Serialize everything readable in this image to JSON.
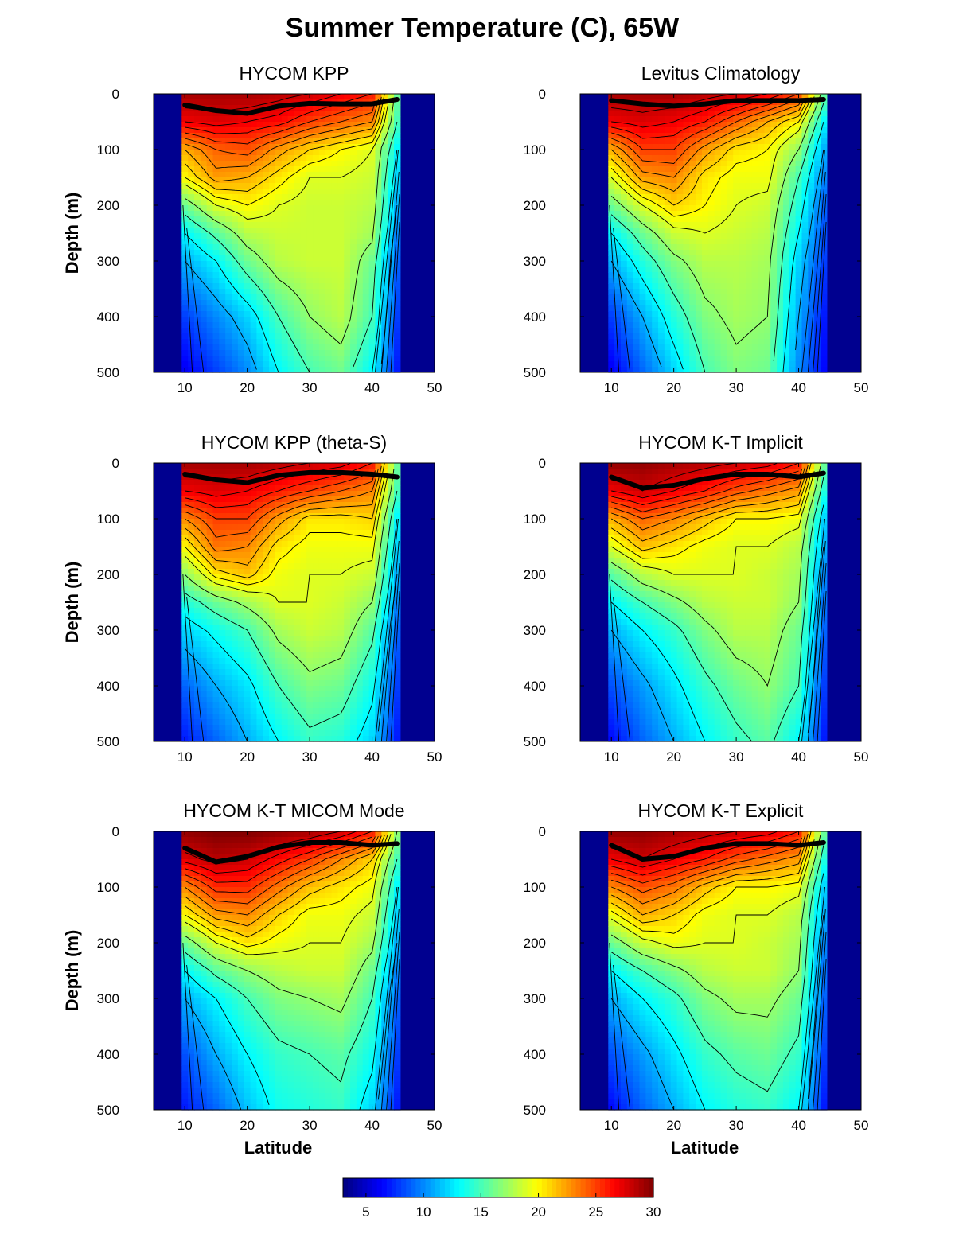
{
  "figure": {
    "title": "Summer Temperature (C), 65W"
  },
  "chart_data": {
    "type": "heatmap",
    "title": "Summer Temperature (C), 65W",
    "xlabel": "Latitude",
    "ylabel": "Depth (m)",
    "xlim": [
      5,
      50
    ],
    "ylim": [
      500,
      0
    ],
    "xticks": [
      10,
      20,
      30,
      40,
      50
    ],
    "yticks": [
      0,
      100,
      200,
      300,
      400,
      500
    ],
    "land_lat_ranges": [
      [
        5,
        9.5
      ],
      [
        44.5,
        50
      ]
    ],
    "colorbar": {
      "range": [
        3,
        30
      ],
      "ticks": [
        5,
        10,
        15,
        20,
        25,
        30
      ],
      "colormap": "jet"
    },
    "panels": [
      {
        "title": "HYCOM KPP",
        "show_xlabel": false,
        "show_ylabel": true,
        "mixed_layer_depth": {
          "lat": [
            10,
            15,
            20,
            25,
            30,
            35,
            40,
            44
          ],
          "depth": [
            20,
            30,
            35,
            22,
            17,
            18,
            18,
            10
          ]
        },
        "temperature": {
          "lat": [
            10,
            15,
            20,
            25,
            30,
            35,
            40,
            44
          ],
          "depth": [
            0,
            50,
            100,
            150,
            200,
            250,
            300,
            400,
            500
          ],
          "values": [
            [
              29,
              29,
              29,
              28.5,
              28,
              27,
              26,
              16
            ],
            [
              27,
              27.5,
              27,
              26.5,
              25,
              24,
              23,
              15
            ],
            [
              22,
              24,
              24.5,
              22.5,
              21,
              20,
              19,
              13
            ],
            [
              20,
              22.5,
              22,
              20.5,
              19,
              19,
              18.5,
              12
            ],
            [
              16,
              19,
              20,
              19,
              18.5,
              18.5,
              18,
              11
            ],
            [
              13,
              15.5,
              18,
              18.5,
              18.5,
              18.5,
              17.5,
              10
            ],
            [
              11,
              13,
              16,
              18,
              18.5,
              18.5,
              16,
              9
            ],
            [
              8,
              10,
              12,
              15,
              17,
              18,
              15,
              8
            ],
            [
              6,
              8,
              10,
              13,
              15,
              16,
              13,
              7
            ]
          ]
        }
      },
      {
        "title": "Levitus Climatology",
        "show_xlabel": false,
        "show_ylabel": false,
        "mixed_layer_depth": {
          "lat": [
            10,
            15,
            20,
            25,
            30,
            35,
            40,
            44
          ],
          "depth": [
            12,
            18,
            22,
            18,
            12,
            12,
            12,
            10
          ]
        },
        "temperature": {
          "lat": [
            10,
            15,
            20,
            25,
            30,
            35,
            40,
            44
          ],
          "depth": [
            0,
            50,
            100,
            150,
            200,
            250,
            300,
            400,
            500
          ],
          "values": [
            [
              29,
              29,
              29,
              28.5,
              28,
              27,
              25,
              16
            ],
            [
              27,
              27.5,
              27,
              26,
              24,
              22,
              20,
              13
            ],
            [
              22,
              25,
              25,
              22.5,
              20.5,
              20,
              17,
              11
            ],
            [
              19,
              22.5,
              23,
              20.5,
              19.5,
              19.5,
              15,
              10
            ],
            [
              16,
              19,
              21,
              20,
              19,
              18.5,
              14,
              9
            ],
            [
              13,
              16,
              18.5,
              19,
              18.5,
              18,
              13,
              8.5
            ],
            [
              11,
              14,
              16.5,
              18,
              18,
              17.5,
              12,
              8
            ],
            [
              8,
              11,
              14,
              16.5,
              17.5,
              17,
              11,
              7
            ],
            [
              6,
              9,
              12,
              15,
              16.5,
              16,
              10,
              6.5
            ]
          ]
        }
      },
      {
        "title": "HYCOM KPP (theta-S)",
        "show_xlabel": false,
        "show_ylabel": true,
        "mixed_layer_depth": {
          "lat": [
            10,
            15,
            20,
            25,
            30,
            35,
            40,
            44
          ],
          "depth": [
            20,
            30,
            35,
            22,
            17,
            17,
            20,
            25
          ]
        },
        "temperature": {
          "lat": [
            10,
            15,
            20,
            25,
            30,
            35,
            40,
            44
          ],
          "depth": [
            0,
            50,
            100,
            150,
            200,
            250,
            300,
            400,
            500
          ],
          "values": [
            [
              29,
              29,
              29,
              28.5,
              28,
              27.5,
              26,
              16
            ],
            [
              27,
              27.5,
              27,
              26,
              25,
              24,
              23,
              15
            ],
            [
              23,
              25,
              25,
              22.5,
              20.5,
              20.5,
              21,
              13
            ],
            [
              20,
              23.5,
              23,
              20.5,
              19.5,
              19.5,
              19.5,
              12
            ],
            [
              17,
              20.5,
              21.5,
              19.5,
              19,
              19,
              18.5,
              11
            ],
            [
              14,
              16,
              17.5,
              19,
              19,
              18.5,
              17,
              10
            ],
            [
              12,
              13.5,
              15,
              17.5,
              18.5,
              18,
              15.5,
              9
            ],
            [
              9,
              11,
              12.5,
              15,
              16.5,
              16,
              13.5,
              8
            ],
            [
              7,
              9,
              11,
              13,
              14.5,
              14,
              12,
              7
            ]
          ]
        }
      },
      {
        "title": "HYCOM K-T Implicit",
        "show_xlabel": false,
        "show_ylabel": false,
        "mixed_layer_depth": {
          "lat": [
            10,
            15,
            20,
            25,
            30,
            35,
            40,
            44
          ],
          "depth": [
            25,
            45,
            40,
            28,
            20,
            20,
            25,
            18
          ]
        },
        "temperature": {
          "lat": [
            10,
            15,
            20,
            25,
            30,
            35,
            40,
            44
          ],
          "depth": [
            0,
            50,
            100,
            150,
            200,
            250,
            300,
            400,
            500
          ],
          "values": [
            [
              29.5,
              29.5,
              29,
              28.5,
              28,
              27.5,
              26,
              16
            ],
            [
              27,
              28,
              27,
              26,
              24.5,
              23.5,
              22.5,
              14
            ],
            [
              22,
              24,
              23,
              21.5,
              20,
              20,
              19.5,
              12
            ],
            [
              19,
              21.5,
              20.5,
              19.5,
              19,
              19,
              18,
              11
            ],
            [
              15.5,
              18,
              19,
              19,
              19,
              18.5,
              17.5,
              10
            ],
            [
              13,
              15,
              16.5,
              18,
              18.5,
              18.5,
              17,
              9.5
            ],
            [
              11,
              13,
              14.5,
              16.5,
              18,
              18,
              16,
              9
            ],
            [
              8.5,
              10.5,
              12.5,
              14.5,
              16,
              17,
              15,
              8
            ],
            [
              6.5,
              9,
              11,
              13,
              14.5,
              15.5,
              13,
              7
            ]
          ]
        }
      },
      {
        "title": "HYCOM K-T MICOM Mode",
        "show_xlabel": true,
        "show_ylabel": true,
        "mixed_layer_depth": {
          "lat": [
            10,
            15,
            20,
            25,
            30,
            35,
            40,
            44
          ],
          "depth": [
            30,
            55,
            45,
            28,
            20,
            20,
            25,
            22
          ]
        },
        "temperature": {
          "lat": [
            10,
            15,
            20,
            25,
            30,
            35,
            40,
            44
          ],
          "depth": [
            0,
            50,
            100,
            150,
            200,
            250,
            300,
            400,
            500
          ],
          "values": [
            [
              29.5,
              30,
              30,
              29.5,
              29,
              28,
              26,
              17
            ],
            [
              27.5,
              28.5,
              28,
              26.5,
              25,
              23,
              21,
              15
            ],
            [
              23,
              25.5,
              25.5,
              23.5,
              21.5,
              20.5,
              19.5,
              13
            ],
            [
              20,
              22.5,
              23,
              21,
              19.5,
              19.5,
              18.5,
              12
            ],
            [
              16,
              19,
              20.5,
              19.5,
              19,
              19,
              17.5,
              11
            ],
            [
              13,
              15.5,
              17,
              18,
              18.5,
              18.5,
              16,
              10
            ],
            [
              11,
              13,
              15,
              16.5,
              17,
              17.5,
              15,
              9
            ],
            [
              8.5,
              11,
              13,
              14.5,
              15,
              15.5,
              13.5,
              8
            ],
            [
              7,
              9,
              11.5,
              13.5,
              14,
              14.5,
              12,
              7
            ]
          ]
        }
      },
      {
        "title": "HYCOM K-T Explicit",
        "show_xlabel": true,
        "show_ylabel": false,
        "mixed_layer_depth": {
          "lat": [
            10,
            15,
            20,
            25,
            30,
            35,
            40,
            44
          ],
          "depth": [
            25,
            50,
            45,
            30,
            22,
            22,
            25,
            20
          ]
        },
        "temperature": {
          "lat": [
            10,
            15,
            20,
            25,
            30,
            35,
            40,
            44
          ],
          "depth": [
            0,
            50,
            100,
            150,
            200,
            250,
            300,
            400,
            500
          ],
          "values": [
            [
              29.5,
              29.5,
              29,
              28.5,
              28,
              27.5,
              26,
              16
            ],
            [
              27,
              28,
              27,
              26,
              24.5,
              23.5,
              22.5,
              14
            ],
            [
              23,
              24.5,
              23.5,
              21.5,
              20,
              20,
              19.5,
              12
            ],
            [
              19.5,
              22,
              21,
              19.5,
              19,
              19,
              18,
              11
            ],
            [
              16,
              18.5,
              19.5,
              19,
              19,
              18.5,
              17.5,
              10
            ],
            [
              13,
              15,
              16.5,
              18,
              18.5,
              18.5,
              17,
              9.5
            ],
            [
              11,
              13,
              14.5,
              16.5,
              17.5,
              17.5,
              16,
              9
            ],
            [
              8.5,
              10.5,
              12.5,
              14.5,
              15.5,
              16,
              14.5,
              8
            ],
            [
              6.5,
              9,
              11,
              13,
              14,
              14.5,
              13,
              7
            ]
          ]
        }
      }
    ]
  }
}
